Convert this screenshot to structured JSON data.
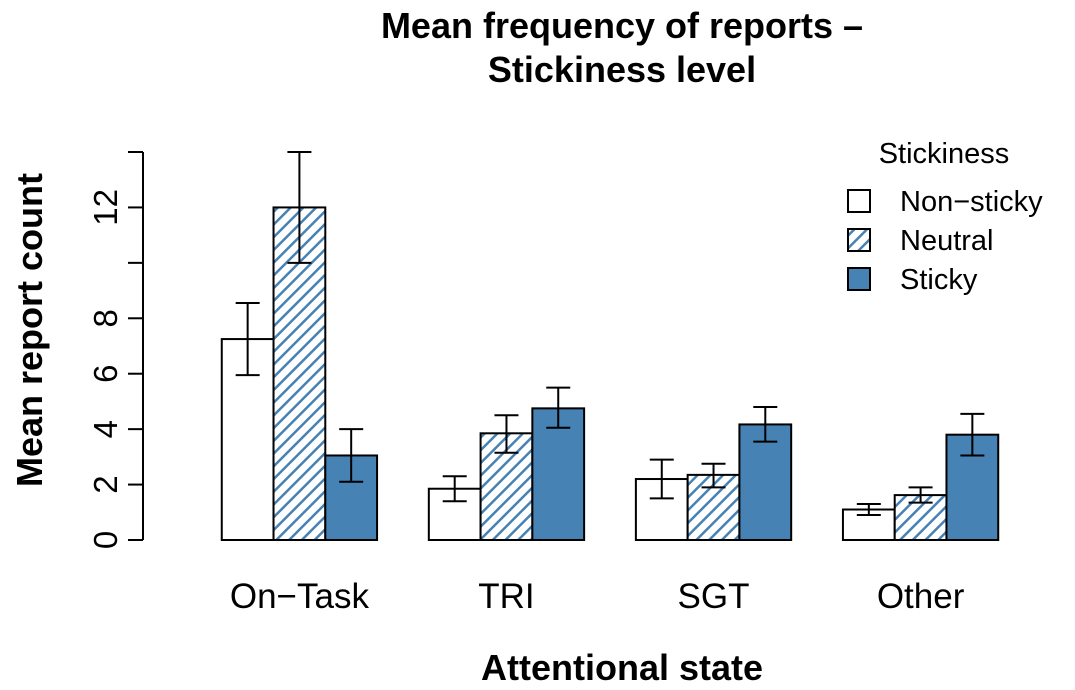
{
  "chart_data": {
    "type": "bar",
    "title_lines": [
      "Mean frequency of reports –",
      "Stickiness level"
    ],
    "xlabel": "Attentional state",
    "ylabel": "Mean report count",
    "categories": [
      "On−Task",
      "TRI",
      "SGT",
      "Other"
    ],
    "ylim": [
      0,
      14
    ],
    "yticks": [
      0,
      2,
      4,
      6,
      8,
      10,
      12,
      14
    ],
    "ytick_labels": [
      "0",
      "2",
      "4",
      "6",
      "8",
      "",
      "12",
      ""
    ],
    "grid": false,
    "legend": {
      "title": "Stickiness",
      "placement": "top-right"
    },
    "series": [
      {
        "name": "Non−sticky",
        "fill": "none",
        "color": "#ffffff",
        "values": [
          7.25,
          1.85,
          2.2,
          1.1
        ],
        "error_low": [
          5.95,
          1.4,
          1.5,
          0.9
        ],
        "error_high": [
          8.55,
          2.3,
          2.9,
          1.3
        ]
      },
      {
        "name": "Neutral",
        "fill": "hatched",
        "color": "#4682b4",
        "values": [
          12.0,
          3.85,
          2.35,
          1.62
        ],
        "error_low": [
          10.0,
          3.15,
          1.9,
          1.35
        ],
        "error_high": [
          14.0,
          4.5,
          2.75,
          1.9
        ]
      },
      {
        "name": "Sticky",
        "fill": "solid",
        "color": "#4682b4",
        "values": [
          3.05,
          4.75,
          4.17,
          3.8
        ],
        "error_low": [
          2.1,
          4.05,
          3.55,
          3.05
        ],
        "error_high": [
          4.0,
          5.5,
          4.8,
          4.55
        ]
      }
    ]
  }
}
